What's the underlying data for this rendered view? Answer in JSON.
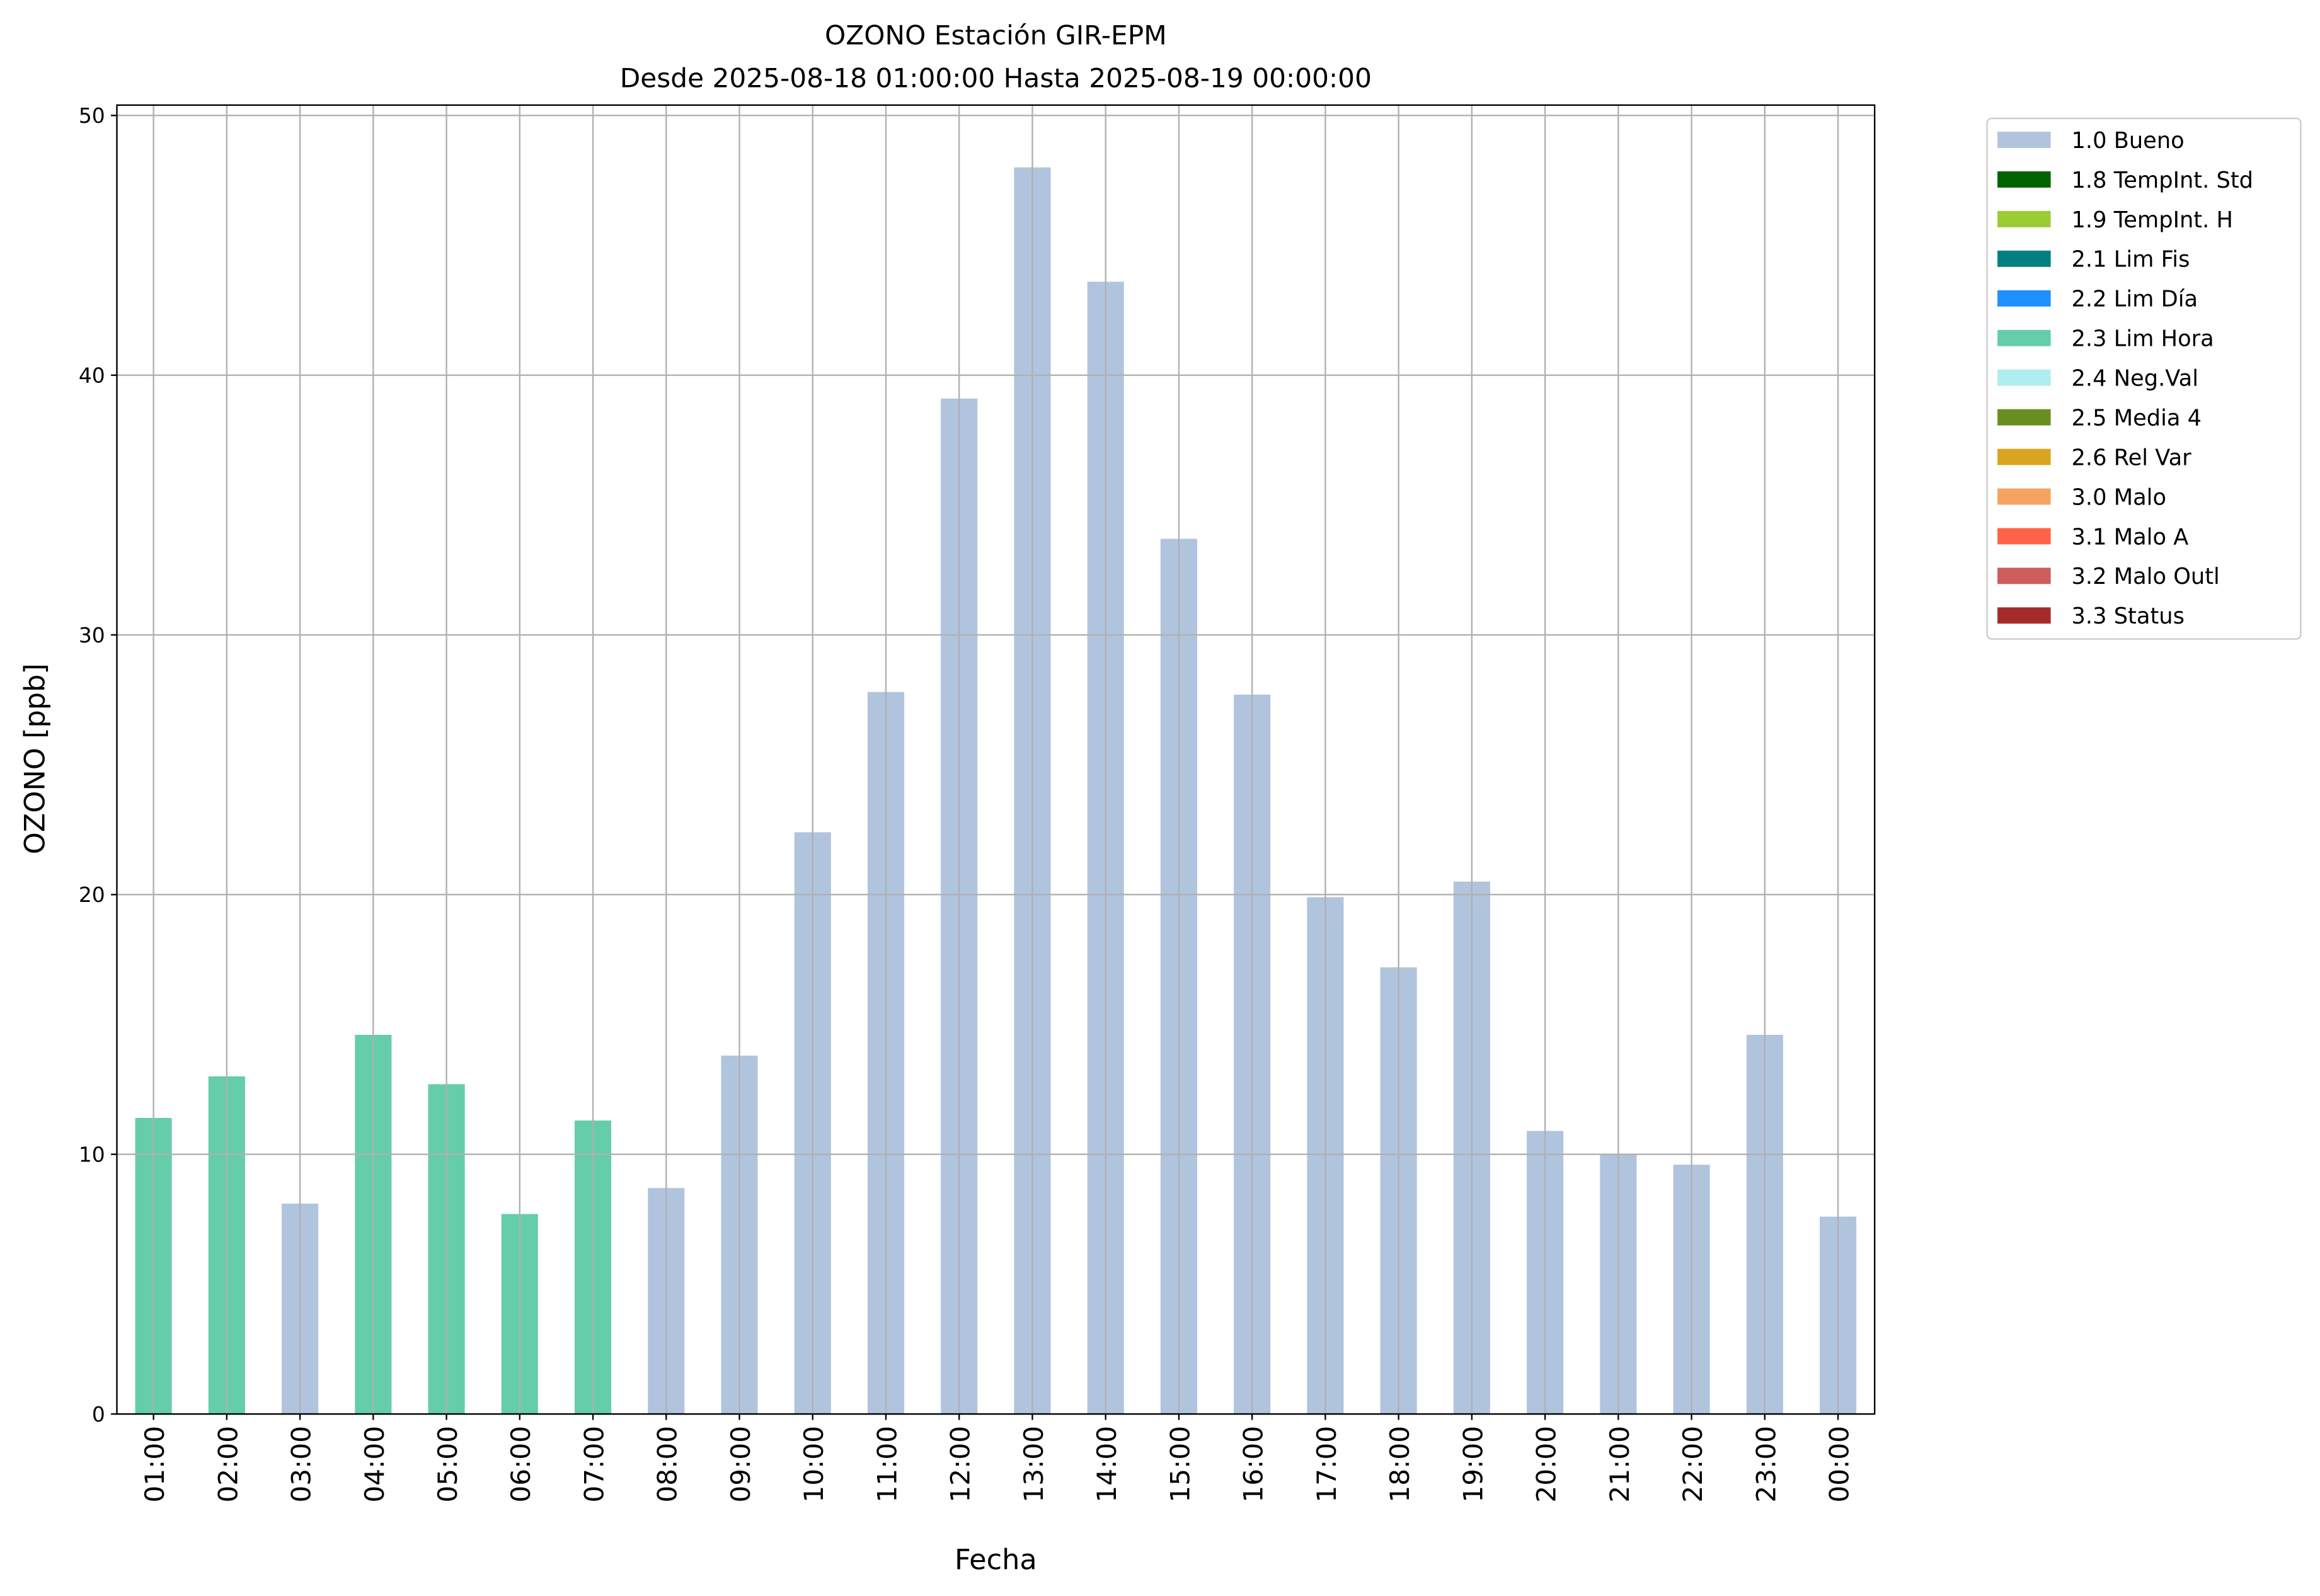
{
  "chart_data": {
    "type": "bar",
    "stacked": true,
    "title": "OZONO Estación GIR-EPM",
    "subtitle": "Desde 2025-08-18 01:00:00 Hasta 2025-08-19 00:00:00",
    "x_label": "Fecha",
    "y_label": "OZONO [ppb]",
    "categories": [
      "01:00",
      "02:00",
      "03:00",
      "04:00",
      "05:00",
      "06:00",
      "07:00",
      "08:00",
      "09:00",
      "10:00",
      "11:00",
      "12:00",
      "13:00",
      "14:00",
      "15:00",
      "16:00",
      "17:00",
      "18:00",
      "19:00",
      "20:00",
      "21:00",
      "22:00",
      "23:00",
      "00:00"
    ],
    "ylim": [
      0,
      50.4
    ],
    "yticks": [
      0,
      10,
      20,
      30,
      40,
      50
    ],
    "grid": true,
    "legend": "outside-right",
    "series": [
      {
        "name": "1.0 Bueno",
        "color": "#b0c4de",
        "values": [
          null,
          null,
          8.1,
          null,
          null,
          null,
          null,
          8.7,
          13.8,
          22.4,
          27.8,
          39.1,
          48.0,
          43.6,
          33.7,
          27.7,
          19.9,
          17.2,
          20.5,
          10.9,
          10.0,
          9.6,
          14.6,
          7.6
        ]
      },
      {
        "name": "1.8 TempInt. Std",
        "color": "#006400",
        "values": [
          null,
          null,
          null,
          null,
          null,
          null,
          null,
          null,
          null,
          null,
          null,
          null,
          null,
          null,
          null,
          null,
          null,
          null,
          null,
          null,
          null,
          null,
          null,
          null
        ]
      },
      {
        "name": "1.9 TempInt. H",
        "color": "#9acd32",
        "values": [
          null,
          null,
          null,
          null,
          null,
          null,
          null,
          null,
          null,
          null,
          null,
          null,
          null,
          null,
          null,
          null,
          null,
          null,
          null,
          null,
          null,
          null,
          null,
          null
        ]
      },
      {
        "name": "2.1 Lim Fis",
        "color": "#008080",
        "values": [
          null,
          null,
          null,
          null,
          null,
          null,
          null,
          null,
          null,
          null,
          null,
          null,
          null,
          null,
          null,
          null,
          null,
          null,
          null,
          null,
          null,
          null,
          null,
          null
        ]
      },
      {
        "name": "2.2 Lim Día",
        "color": "#1e90ff",
        "values": [
          null,
          null,
          null,
          null,
          null,
          null,
          null,
          null,
          null,
          null,
          null,
          null,
          null,
          null,
          null,
          null,
          null,
          null,
          null,
          null,
          null,
          null,
          null,
          null
        ]
      },
      {
        "name": "2.3 Lim Hora",
        "color": "#66cdaa",
        "values": [
          11.4,
          13.0,
          null,
          14.6,
          12.7,
          7.7,
          11.3,
          null,
          null,
          null,
          null,
          null,
          null,
          null,
          null,
          null,
          null,
          null,
          null,
          null,
          null,
          null,
          null,
          null
        ]
      },
      {
        "name": "2.4 Neg.Val",
        "color": "#afeeee",
        "values": [
          null,
          null,
          null,
          null,
          null,
          null,
          null,
          null,
          null,
          null,
          null,
          null,
          null,
          null,
          null,
          null,
          null,
          null,
          null,
          null,
          null,
          null,
          null,
          null
        ]
      },
      {
        "name": "2.5 Media 4",
        "color": "#6b8e23",
        "values": [
          null,
          null,
          null,
          null,
          null,
          null,
          null,
          null,
          null,
          null,
          null,
          null,
          null,
          null,
          null,
          null,
          null,
          null,
          null,
          null,
          null,
          null,
          null,
          null
        ]
      },
      {
        "name": "2.6 Rel Var",
        "color": "#daa520",
        "values": [
          null,
          null,
          null,
          null,
          null,
          null,
          null,
          null,
          null,
          null,
          null,
          null,
          null,
          null,
          null,
          null,
          null,
          null,
          null,
          null,
          null,
          null,
          null,
          null
        ]
      },
      {
        "name": "3.0 Malo",
        "color": "#f4a460",
        "values": [
          null,
          null,
          null,
          null,
          null,
          null,
          null,
          null,
          null,
          null,
          null,
          null,
          null,
          null,
          null,
          null,
          null,
          null,
          null,
          null,
          null,
          null,
          null,
          null
        ]
      },
      {
        "name": "3.1 Malo A",
        "color": "#ff6347",
        "values": [
          null,
          null,
          null,
          null,
          null,
          null,
          null,
          null,
          null,
          null,
          null,
          null,
          null,
          null,
          null,
          null,
          null,
          null,
          null,
          null,
          null,
          null,
          null,
          null
        ]
      },
      {
        "name": "3.2 Malo Outl",
        "color": "#cd5c5c",
        "values": [
          null,
          null,
          null,
          null,
          null,
          null,
          null,
          null,
          null,
          null,
          null,
          null,
          null,
          null,
          null,
          null,
          null,
          null,
          null,
          null,
          null,
          null,
          null,
          null
        ]
      },
      {
        "name": "3.3 Status",
        "color": "#a52a2a",
        "values": [
          null,
          null,
          null,
          null,
          null,
          null,
          null,
          null,
          null,
          null,
          null,
          null,
          null,
          null,
          null,
          null,
          null,
          null,
          null,
          null,
          null,
          null,
          null,
          null
        ]
      }
    ]
  }
}
